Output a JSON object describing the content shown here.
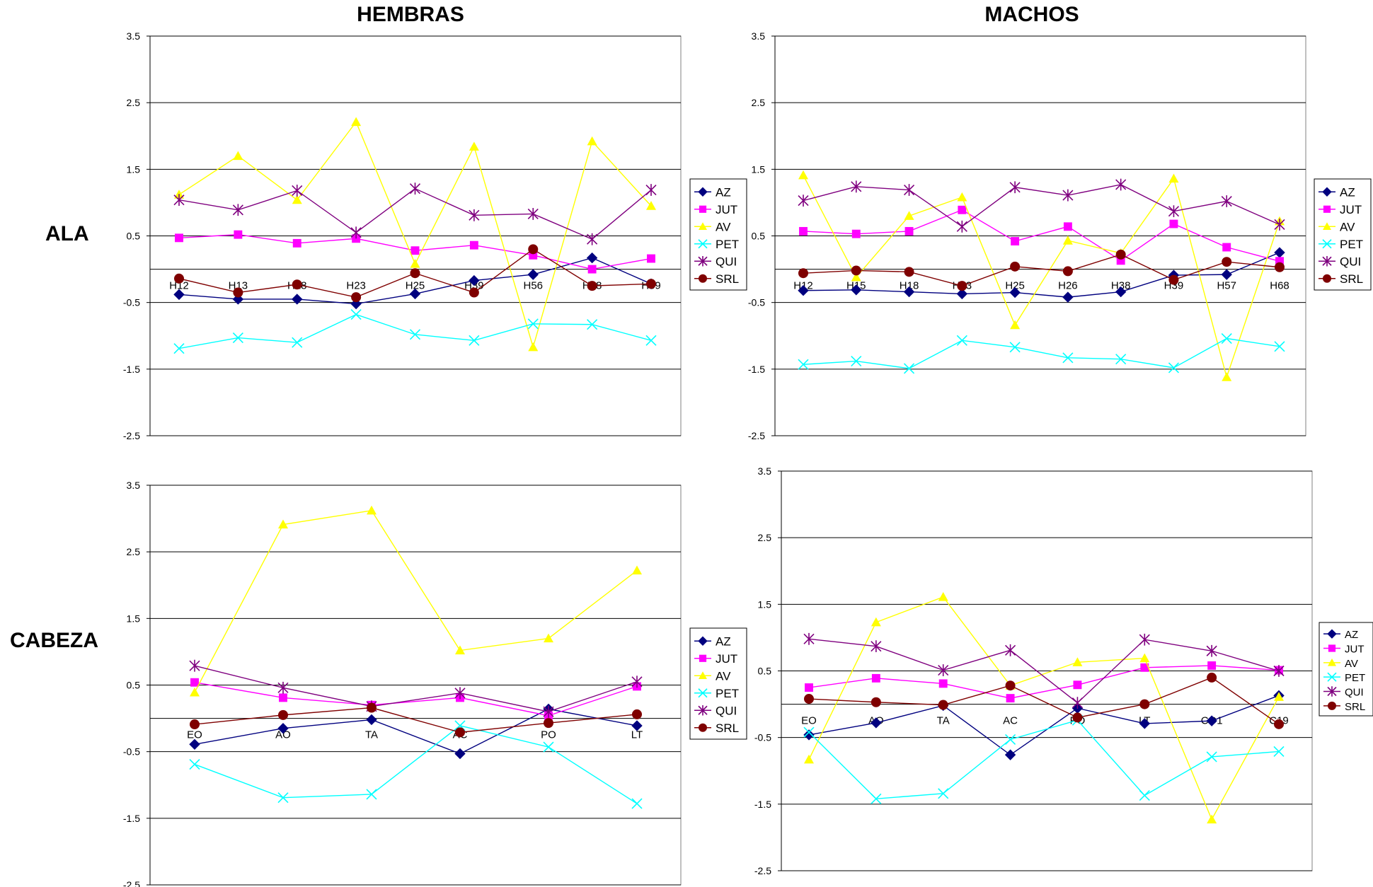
{
  "titles": {
    "col1": "HEMBRAS",
    "col2": "MACHOS",
    "row1": "ALA",
    "row2": "CABEZA"
  },
  "series_colors": {
    "AZ": "#00007F",
    "JUT": "#FF00FF",
    "AV": "#FFFF00",
    "PET": "#00FFFF",
    "QUI": "#7F007F",
    "SRL": "#7F0000"
  },
  "chart_data": [
    {
      "type": "line",
      "title": "HEMBRAS",
      "row": "ALA",
      "categories": [
        "H12",
        "H13",
        "H18",
        "H23",
        "H25",
        "H39",
        "H56",
        "H58",
        "H59"
      ],
      "ylim": [
        -2.5,
        3.5
      ],
      "yticks": [
        "3.5",
        "2.5",
        "1.5",
        "0.5",
        "-0.5",
        "-1.5",
        "-2.5"
      ],
      "grid": true,
      "legend": "right",
      "series": [
        {
          "name": "AZ",
          "values": [
            -0.38,
            -0.45,
            -0.45,
            -0.52,
            -0.37,
            -0.17,
            -0.08,
            0.17,
            -0.22
          ]
        },
        {
          "name": "JUT",
          "values": [
            0.47,
            0.52,
            0.39,
            0.46,
            0.28,
            0.36,
            0.21,
            0.0,
            0.16
          ]
        },
        {
          "name": "AV",
          "values": [
            1.12,
            1.7,
            1.04,
            2.21,
            0.08,
            1.84,
            -1.17,
            1.92,
            0.95
          ]
        },
        {
          "name": "PET",
          "values": [
            -1.19,
            -1.03,
            -1.1,
            -0.68,
            -0.98,
            -1.07,
            -0.82,
            -0.83,
            -1.07
          ]
        },
        {
          "name": "QUI",
          "values": [
            1.04,
            0.89,
            1.18,
            0.55,
            1.21,
            0.81,
            0.83,
            0.45,
            1.19
          ]
        },
        {
          "name": "SRL",
          "values": [
            -0.14,
            -0.35,
            -0.23,
            -0.42,
            -0.06,
            -0.35,
            0.3,
            -0.25,
            -0.22
          ]
        }
      ]
    },
    {
      "type": "line",
      "title": "MACHOS",
      "row": "ALA",
      "categories": [
        "H12",
        "H15",
        "H18",
        "H23",
        "H25",
        "H26",
        "H38",
        "H39",
        "H57",
        "H68"
      ],
      "ylim": [
        -2.5,
        3.5
      ],
      "yticks": [
        "3.5",
        "2.5",
        "1.5",
        "0.5",
        "-0.5",
        "-1.5",
        "-2.5"
      ],
      "grid": true,
      "legend": "right",
      "series": [
        {
          "name": "AZ",
          "values": [
            -0.32,
            -0.31,
            -0.34,
            -0.37,
            -0.35,
            -0.42,
            -0.34,
            -0.09,
            -0.08,
            0.25
          ]
        },
        {
          "name": "JUT",
          "values": [
            0.57,
            0.53,
            0.57,
            0.89,
            0.42,
            0.64,
            0.13,
            0.68,
            0.33,
            0.12
          ]
        },
        {
          "name": "AV",
          "values": [
            1.41,
            -0.12,
            0.8,
            1.08,
            -0.84,
            0.43,
            0.24,
            1.36,
            -1.62,
            0.72
          ]
        },
        {
          "name": "PET",
          "values": [
            -1.43,
            -1.38,
            -1.49,
            -1.07,
            -1.17,
            -1.33,
            -1.35,
            -1.48,
            -1.04,
            -1.16
          ]
        },
        {
          "name": "QUI",
          "values": [
            1.03,
            1.24,
            1.19,
            0.64,
            1.23,
            1.11,
            1.27,
            0.87,
            1.02,
            0.67
          ]
        },
        {
          "name": "SRL",
          "values": [
            -0.06,
            -0.02,
            -0.04,
            -0.25,
            0.04,
            -0.03,
            0.22,
            -0.16,
            0.11,
            0.03
          ]
        }
      ]
    },
    {
      "type": "line",
      "title": "HEMBRAS",
      "row": "CABEZA",
      "categories": [
        "EO",
        "AO",
        "TA",
        "AC",
        "PO",
        "LT"
      ],
      "ylim": [
        -2.5,
        3.5
      ],
      "yticks": [
        "3.5",
        "2.5",
        "1.5",
        "0.5",
        "-0.5",
        "-1.5",
        "-2.5"
      ],
      "grid": true,
      "legend": "right",
      "series": [
        {
          "name": "AZ",
          "values": [
            -0.39,
            -0.15,
            -0.02,
            -0.53,
            0.14,
            -0.11
          ]
        },
        {
          "name": "JUT",
          "values": [
            0.54,
            0.31,
            0.2,
            0.31,
            0.04,
            0.48
          ]
        },
        {
          "name": "AV",
          "values": [
            0.39,
            2.91,
            3.12,
            1.02,
            1.2,
            2.22
          ]
        },
        {
          "name": "PET",
          "values": [
            -0.69,
            -1.19,
            -1.14,
            -0.11,
            -0.43,
            -1.28
          ]
        },
        {
          "name": "QUI",
          "values": [
            0.79,
            0.46,
            0.18,
            0.38,
            0.1,
            0.55
          ]
        },
        {
          "name": "SRL",
          "values": [
            -0.09,
            0.05,
            0.16,
            -0.21,
            -0.07,
            0.06
          ]
        }
      ]
    },
    {
      "type": "line",
      "title": "MACHOS",
      "row": "CABEZA",
      "categories": [
        "EO",
        "AO",
        "TA",
        "AC",
        "PO",
        "LT",
        "CO1",
        "C19"
      ],
      "ylim": [
        -2.5,
        3.5
      ],
      "yticks": [
        "3.5",
        "2.5",
        "1.5",
        "0.5",
        "-0.5",
        "-1.5",
        "-2.5"
      ],
      "grid": true,
      "legend": "right",
      "series": [
        {
          "name": "AZ",
          "values": [
            -0.46,
            -0.28,
            -0.02,
            -0.76,
            -0.06,
            -0.29,
            -0.25,
            0.13
          ]
        },
        {
          "name": "JUT",
          "values": [
            0.25,
            0.39,
            0.31,
            0.09,
            0.29,
            0.55,
            0.58,
            0.51
          ]
        },
        {
          "name": "AV",
          "values": [
            -0.83,
            1.23,
            1.61,
            0.28,
            0.63,
            0.69,
            -1.73,
            0.11
          ]
        },
        {
          "name": "PET",
          "values": [
            -0.42,
            -1.42,
            -1.34,
            -0.53,
            -0.24,
            -1.37,
            -0.79,
            -0.71
          ]
        },
        {
          "name": "QUI",
          "values": [
            0.98,
            0.87,
            0.51,
            0.81,
            0.02,
            0.97,
            0.8,
            0.5
          ]
        },
        {
          "name": "SRL",
          "values": [
            0.08,
            0.03,
            -0.01,
            0.28,
            -0.2,
            0.0,
            0.4,
            -0.3
          ]
        }
      ]
    }
  ]
}
